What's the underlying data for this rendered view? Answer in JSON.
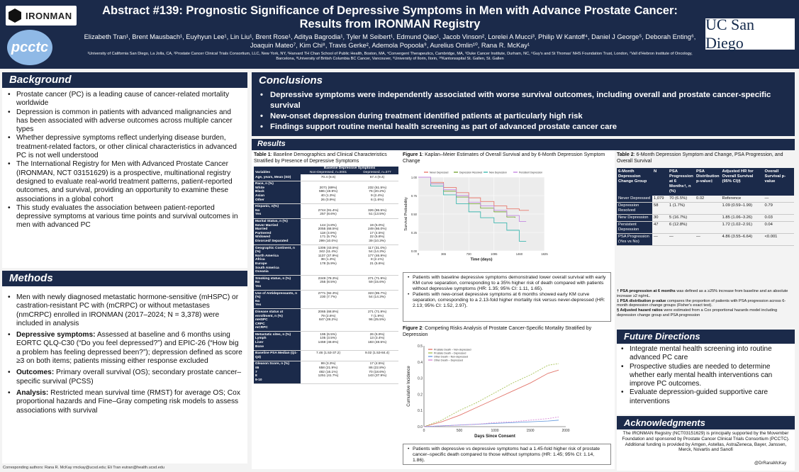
{
  "header": {
    "title": "Abstract #139: Prognostic Significance of Depressive Symptoms in Men with Advance Prostate Cancer: Results from IRONMAN Registry",
    "authors": "Elizabeth Tran¹, Brent Mausbach¹, Euyhyun Lee¹, Lin Liu¹, Brent Rose¹, Aditya Bagrodia¹, Tyler M Seibert¹, Edmund Qiao¹, Jacob Vinson², Lorelei A Mucci³, Philip W Kantoff⁴, Daniel J George⁵, Deborah Enting⁶, Joaquin Mateo⁷, Kim Chi⁸, Travis Gerke², Ademola Popoola⁹, Aurelius Omlin¹⁰, Rana R. McKay¹",
    "affiliations": "¹University of California San Diego, La Jolla, CA, ²Prostate Cancer Clinical Trials Consortium, LLC, New York, NY, ³Harvard TH Chan School of Public Health, Boston, MA, ⁴Convergent Therapeutics, Cambridge, MA, ⁵Duke Cancer Institute, Durham, NC, ⁶Guy's and St Thomas' NHS Foundation Trust, London, ⁷Vall d'Hebron Institute of Oncology, Barcelona, ⁸University of British Columbia BC Cancer, Vancouver, ⁹University of Ilorin, Ilorin, ¹⁰Kantonsspital St. Gallen, St. Gallen",
    "logo_left": "IRONMAN",
    "logo_pcctc": "pcctc",
    "logo_right": "UC San Diego"
  },
  "background": {
    "heading": "Background",
    "bullets": [
      "Prostate cancer (PC) is a leading cause of cancer-related mortality worldwide",
      "Depression is common in patients with advanced malignancies and has been associated with adverse outcomes across multiple cancer types",
      "Whether depressive symptoms reflect underlying disease burden, treatment-related factors, or other clinical characteristics in advanced PC is not well understood",
      "The International Registry for Men with Advanced Prostate Cancer (IRONMAN, NCT 03151629) is a prospective, multinational registry designed to evaluate real-world treatment patterns, patient-reported outcomes, and survival, providing an opportunity to examine these associations in a global cohort",
      "This study evaluates the association between patient-reported depressive symptoms at various time points and survival outcomes in men with advanced PC"
    ]
  },
  "methods": {
    "heading": "Methods",
    "b1": "Men with newly diagnosed metastatic hormone-sensitive (mHSPC) or castration-resistant PC with (mCRPC) or without metastases (nmCRPC) enrolled in IRONMAN (2017–2024; N = 3,378) were included in analysis",
    "b2_label": "Depressive symptoms:",
    "b2_text": " Assessed at baseline and 6 months using EORTC QLQ-C30 (“Do you feel depressed?”) and EPIC-26 (“How big a problem has feeling depressed been?”); depression defined as score ≥3 on both items; patients missing either response excluded",
    "b3_label": "Outcomes:",
    "b3_text": " Primary overall survival (OS); secondary prostate cancer–specific survival (PCSS)",
    "b4_label": "Analysis:",
    "b4_text": " Restricted mean survival time (RMST) for average OS; Cox proportional hazards and Fine–Gray competing risk models to assess associations with survival"
  },
  "footer": "Corresponding authors: Rana R. McKay rmckay@ucsd.edu; Eli Tran eutran@health.ucsd.edu",
  "conclusions": {
    "heading": "Conclusions",
    "bullets": [
      "Depressive symptoms were independently associated with worse survival outcomes, including overall and prostate cancer-specific survival",
      "New-onset depression during treatment identified patients at particularly high risk",
      "Findings support routine mental health screening as part of advanced prostate cancer care"
    ]
  },
  "results": {
    "heading": "Results",
    "table1": {
      "caption_label": "Table 1",
      "caption_text": ": Baseline Demographics and Clinical Characteristics Stratified by Presence of Depressive Symptoms",
      "group_header": "Baseline Depressive Symptoms",
      "col_variables": "Variables",
      "col_nondep": "Non-Depressed, n=3001",
      "col_dep": "Depressed, n=377",
      "rows": [
        [
          "Age, years, Mean (SD)",
          "70.4 (8.6)",
          "67.4 (9.4)"
        ],
        [
          "Race, n (%)\nWhite\nBlack\nAsian\nOther",
          "\n2071 (69%)\n596 (19.9%)\n40 (1.3%)\n26 (0.9%)",
          "\n232 (61.5%)\n76 (20.2%)\n9 (2.4%)\n6 (1.6%)"
        ],
        [
          "Hispanic, n(%)\nNo\nYes",
          "\n2744 (91.4%)\n257 (8.6%)",
          "\n326 (86.5%)\n51 (13.5%)"
        ],
        [
          "Marital Status, n (%)\nNever Married\nMarried\nPartnered\nWidowed\nDivorced/ Separated",
          "\n144 (4.8%)\n2055 (68.5%)\n118 (3.9%)\n171 (5.7%)\n299 (10.0%)",
          "\n19 (5.0%)\n249 (66.0%)\n17 (4.5%)\n22 (5.8%)\n39 (10.3%)"
        ],
        [
          "Geographic Continent, n (%)\nNorth America\nAfrica\nEurope\nSouth America\nOceania",
          "1306 (43.5%)\n342 (11.4%)\n1137 (37.9%)\n38 (1.3%)\n178 (5.9%)",
          "117 (31.0%)\n54 (14.3%)\n177 (46.9%)\n8 (2.1%)\n21 (5.6%)"
        ],
        [
          "Smoking status, n (%)\nNo\nYes",
          "2349 (78.3%)\n255 (8.5%)",
          "271 (71.9%)\n59 (15.6%)"
        ],
        [
          "Use of Antidepressants, n (%)\nNo\nYes",
          "2771 (92.3%)\n230 (7.7%)",
          "323 (85.7%)\n54 (14.3%)"
        ],
        [
          "Disease status at enrollment, n (%)\nmHSPC\nCRPC\nmCRPC",
          "2065 (68.8%)\n79 (2.6%)\n847 (28.2%)",
          "271 (71.9%)\n7 (1.9%)\n96 (25.5%)"
        ],
        [
          "Metastatic sites, n (%)\nLymph\nLiver\nBone",
          "195 (6.5%)\n105 (3.5%)\n1459 (48.6%)",
          "26 (6.9%)\n13 (3.4%)\n183 (48.5%)"
        ],
        [
          "Baseline PSA Median (Q1-Q3)",
          "7.46 (1.53-37.2)",
          "9.02 (1.53-84.4)"
        ],
        [
          "Gleason Score, n (%)\n≤6\n7\n8\n9-10",
          "99 (3.3%)\n658 (21.9%)\n482 (16.1%)\n1251 (41.7%)",
          "17 (4.5%)\n86 (22.8%)\n70 (18.6%)\n143 (37.9%)"
        ]
      ]
    },
    "fig1": {
      "caption_label": "Figure 1",
      "caption_text": ": Kaplan–Meier Estimates of Overall Survival and by 6-Month Depression Symptom Change",
      "notes": [
        "Patients with baseline depressive symptoms demonstrated lower overall survival with early KM curve separation, corresponding to a 35% higher risk of death compared with patients without depressive symptoms (HR: 1.35; 95% CI: 1.11, 1.65).",
        "Patients with new-onset depressive symptoms at 6 months showed early KM curve separation, corresponding to a 2.13-fold higher mortality risk versus never-depressed (HR: 2.13; 95% CI: 1.52, 2.97)."
      ]
    },
    "fig2": {
      "caption_label": "Figure 2",
      "caption_text": ": Competing Risks Analysis of Prostate Cancer-Specific Mortality Stratified by Depression",
      "notes": [
        "Patients with depressive vs depressive symptoms had a 1.45-fold higher risk of prostate cancer–specific death compared to those without symptoms (HR: 1.45; 95% CI: 1.14, 1.86)."
      ]
    },
    "table2": {
      "caption_label": "Table 2",
      "caption_text": ": 6-Month Depression Symptom and Change, PSA Progression, and Overall Survival",
      "headers": [
        "6-Month Depression Change Group",
        "N",
        "PSA Progression at 6 Months†, n (%)",
        "PSA Distribution p-value‡",
        "Adjusted HR for Overall Survival (95% CI)§",
        "Overall Survival p-value"
      ],
      "rows": [
        [
          "Never Depressed",
          "1,079",
          "70 (6.5%)",
          "0.02",
          "Reference",
          "—"
        ],
        [
          "Depression Resolved",
          "58",
          "1 (1.7%)",
          "",
          "1.09 (0.59–1.99)",
          "0.79"
        ],
        [
          "New Depression",
          "30",
          "5 (16.7%)",
          "",
          "1.85 (1.06–3.26)",
          "0.03"
        ],
        [
          "Persistent Depression",
          "47",
          "6 (12.8%)",
          "",
          "1.72 (1.02–2.91)",
          "0.04"
        ],
        [
          "PSA Progression (Yes vs No)",
          "—",
          "—",
          "—",
          "4.86 (3.55–6.64)",
          "<0.001"
        ]
      ],
      "note1_label": "† PSA progression at 6 months",
      "note1_text": " was defined as a ≥25% increase from baseline and an absolute increase ≥2 ng/mL.",
      "note2_label": "‡ PSA distribution p-value",
      "note2_text": " compares the proportion of patients with PSA progression across 6-month depression change groups (Fisher's exact test).",
      "note3_label": "§ Adjusted hazard ratios",
      "note3_text": " were estimated from a Cox proportional hazards model including depression change group and PSA progression"
    }
  },
  "future": {
    "heading": "Future Directions",
    "bullets": [
      "Integrate mental health screening into routine advanced PC care",
      "Prospective studies are needed to determine whether early mental health interventions can improve PC outcomes.",
      "Evaluate depression-guided supportive care interventions"
    ]
  },
  "ack": {
    "heading": "Acknowledgments",
    "text": "The IRONMAN Registry (NCT03151629) is principally supported by the Movember Foundation and sponsored by Prostate Cancer Clinical Trials Consortium (PCCTC). Additional funding is provided by Amgen, Astellas, AstraZeneca, Bayer, Janssen, Merck, Novartis and Sanofi",
    "handle": "@DrRanaMcKay"
  },
  "chart_data": [
    {
      "type": "line",
      "title": "",
      "xlabel": "Time (days)",
      "ylabel": "Survival Probability",
      "xticks": [
        "0",
        "365",
        "730",
        "1095",
        "1460",
        "1825"
      ],
      "yticks": [
        "0.00",
        "0.25",
        "0.50",
        "0.75",
        "1.00"
      ],
      "xlim": [
        0,
        1825
      ],
      "ylim": [
        0,
        1
      ],
      "legend_position": "top",
      "series": [
        {
          "name": "Never Depressed",
          "color": "#e8796e",
          "x": [
            0,
            180,
            365,
            550,
            730,
            900,
            1095,
            1280,
            1460,
            1600
          ],
          "y": [
            1.0,
            0.93,
            0.86,
            0.79,
            0.72,
            0.67,
            0.61,
            0.57,
            0.55,
            0.55
          ]
        },
        {
          "name": "Depression Resolved",
          "color": "#7aa63a",
          "x": [
            0,
            180,
            365,
            550,
            730,
            900,
            1095,
            1280,
            1400
          ],
          "y": [
            1.0,
            0.91,
            0.81,
            0.73,
            0.64,
            0.58,
            0.53,
            0.46,
            0.45
          ]
        },
        {
          "name": "New Depression",
          "color": "#3fb8b0",
          "x": [
            0,
            180,
            365,
            550,
            730,
            900,
            1095,
            1280,
            1460,
            1560
          ],
          "y": [
            1.0,
            0.88,
            0.76,
            0.64,
            0.53,
            0.45,
            0.38,
            0.28,
            0.13,
            0.13
          ]
        },
        {
          "name": "Persistent Depression",
          "color": "#c489e0",
          "x": [
            0,
            180,
            365,
            550,
            730,
            900,
            1095,
            1280,
            1460,
            1560
          ],
          "y": [
            1.0,
            0.91,
            0.83,
            0.75,
            0.66,
            0.61,
            0.55,
            0.48,
            0.4,
            0.4
          ]
        }
      ]
    },
    {
      "type": "line",
      "title": "",
      "xlabel": "Days Since Consent",
      "ylabel": "Cumulative Incidence",
      "xticks": [
        "0",
        "500",
        "1000",
        "1500",
        "2000"
      ],
      "yticks": [
        "0.0",
        "0.1",
        "0.2",
        "0.3",
        "0.4",
        "0.5"
      ],
      "xlim": [
        0,
        2000
      ],
      "ylim": [
        0,
        0.5
      ],
      "legend_position": "top-left",
      "series": [
        {
          "name": "Prostate Death – Non-depressed",
          "color": "#e2766c",
          "x": [
            0,
            250,
            500,
            750,
            1000,
            1250,
            1500,
            1750,
            1900
          ],
          "y": [
            0.0,
            0.03,
            0.07,
            0.12,
            0.17,
            0.22,
            0.27,
            0.33,
            0.35
          ]
        },
        {
          "name": "Prostate Death – Depressed",
          "color": "#a9c35a",
          "x": [
            0,
            250,
            500,
            750,
            1000,
            1250,
            1500,
            1750,
            1900
          ],
          "y": [
            0.0,
            0.04,
            0.1,
            0.15,
            0.21,
            0.27,
            0.32,
            0.38,
            0.39
          ]
        },
        {
          "name": "Other Death – Non-depressed",
          "color": "#6fa0e0",
          "x": [
            0,
            250,
            500,
            750,
            1000,
            1250,
            1500,
            1750,
            1900
          ],
          "y": [
            0.0,
            0.005,
            0.01,
            0.015,
            0.02,
            0.025,
            0.03,
            0.035,
            0.04
          ]
        },
        {
          "name": "Other Death – Depressed",
          "color": "#d88ad6",
          "x": [
            0,
            250,
            500,
            750,
            1000,
            1250,
            1500,
            1750,
            1900
          ],
          "y": [
            0.0,
            0.005,
            0.01,
            0.015,
            0.025,
            0.03,
            0.04,
            0.05,
            0.06
          ]
        }
      ]
    }
  ]
}
